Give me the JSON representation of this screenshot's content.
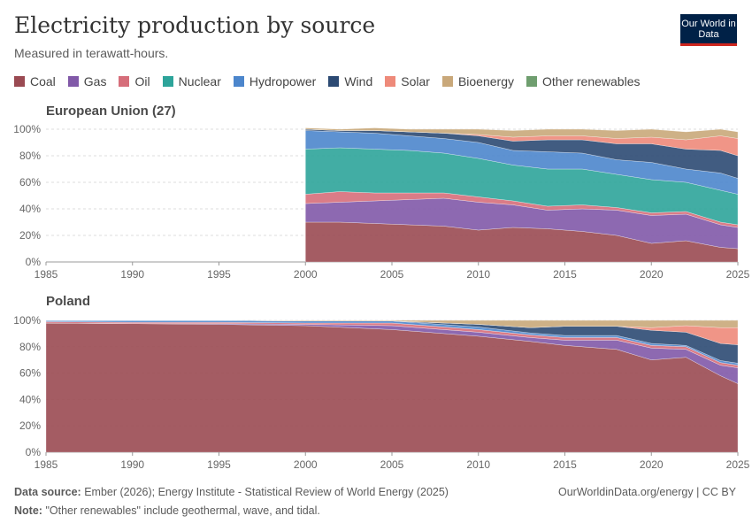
{
  "header": {
    "title": "Electricity production by source",
    "subtitle": "Measured in terawatt-hours.",
    "logo": "Our World in Data"
  },
  "footer": {
    "source_label": "Data source:",
    "source_text": "Ember (2026); Energy Institute - Statistical Review of World Energy (2025)",
    "note_label": "Note:",
    "note_text": "\"Other renewables\" include geothermal, wave, and tidal.",
    "credit": "OurWorldinData.org/energy | CC BY"
  },
  "chart_data": {
    "type": "area",
    "stacked": true,
    "relative": true,
    "legend_position": "top",
    "grid": true,
    "x_ticks": [
      1985,
      1990,
      1995,
      2000,
      2005,
      2010,
      2015,
      2020,
      2025
    ],
    "y_ticks": [
      "0%",
      "20%",
      "40%",
      "60%",
      "80%",
      "100%"
    ],
    "xlim": [
      1985,
      2025
    ],
    "ylim": [
      0,
      100
    ],
    "legend": [
      {
        "name": "Coal",
        "color": "#9a4a52"
      },
      {
        "name": "Gas",
        "color": "#8159a8"
      },
      {
        "name": "Oil",
        "color": "#d66e7a"
      },
      {
        "name": "Nuclear",
        "color": "#2da49a"
      },
      {
        "name": "Hydropower",
        "color": "#4c86cc"
      },
      {
        "name": "Wind",
        "color": "#2c4a73"
      },
      {
        "name": "Solar",
        "color": "#ee8a7a"
      },
      {
        "name": "Bioenergy",
        "color": "#c9a87a"
      },
      {
        "name": "Other renewables",
        "color": "#6f9e6f"
      }
    ],
    "panels": [
      {
        "name": "European Union (27)",
        "x": [
          2000,
          2002,
          2004,
          2006,
          2008,
          2010,
          2012,
          2014,
          2016,
          2018,
          2020,
          2022,
          2024,
          2025
        ],
        "series": [
          {
            "name": "Coal",
            "values": [
              30,
              30,
              29,
              28,
              27,
              24,
              26,
              25,
              23,
              20,
              14,
              16,
              11,
              10
            ]
          },
          {
            "name": "Gas",
            "values": [
              14,
              15,
              17,
              19,
              21,
              21,
              17,
              14,
              17,
              19,
              21,
              20,
              17,
              16
            ]
          },
          {
            "name": "Oil",
            "values": [
              7,
              8,
              6,
              5,
              4,
              4,
              3,
              3,
              3,
              2,
              2,
              2,
              2,
              2
            ]
          },
          {
            "name": "Nuclear",
            "values": [
              34,
              33,
              33,
              32,
              30,
              29,
              27,
              28,
              27,
              25,
              25,
              22,
              24,
              23
            ]
          },
          {
            "name": "Hydropower",
            "values": [
              14,
              12,
              12,
              11,
              11,
              12,
              11,
              13,
              12,
              11,
              13,
              10,
              13,
              12
            ]
          },
          {
            "name": "Wind",
            "values": [
              1,
              1,
              2,
              3,
              4,
              5,
              7,
              9,
              10,
              12,
              14,
              15,
              17,
              17
            ]
          },
          {
            "name": "Solar",
            "values": [
              0,
              0,
              0,
              0,
              0,
              1,
              3,
              3,
              3,
              4,
              5,
              7,
              11,
              13
            ]
          },
          {
            "name": "Bioenergy",
            "values": [
              1,
              1,
              2,
              2,
              3,
              4,
              5,
              5,
              5,
              6,
              6,
              6,
              5,
              5
            ]
          },
          {
            "name": "Other renewables",
            "values": [
              0,
              0,
              0,
              0,
              0,
              0,
              0,
              0,
              0,
              0,
              0,
              0,
              0,
              0
            ]
          }
        ]
      },
      {
        "name": "Poland",
        "x": [
          1985,
          1990,
          1995,
          2000,
          2005,
          2010,
          2013,
          2015,
          2018,
          2020,
          2022,
          2024,
          2025
        ],
        "series": [
          {
            "name": "Coal",
            "values": [
              98,
              97.5,
              97,
              96,
              93,
              88,
              84,
              81,
              78,
              70,
              72,
              58,
              52
            ]
          },
          {
            "name": "Gas",
            "values": [
              0,
              0,
              0.5,
              1,
              3,
              3,
              3,
              4,
              7,
              9,
              6,
              8,
              12
            ]
          },
          {
            "name": "Oil",
            "values": [
              1,
              1,
              1,
              1,
              2,
              2,
              2,
              2,
              2,
              2,
              2,
              2,
              2
            ]
          },
          {
            "name": "Nuclear",
            "values": [
              0,
              0,
              0,
              0,
              0,
              0,
              0,
              0,
              0,
              0,
              0,
              0,
              0
            ]
          },
          {
            "name": "Hydropower",
            "values": [
              1,
              1.5,
              1.5,
              1.5,
              1.5,
              2,
              1.5,
              1.5,
              1.5,
              1.5,
              1,
              1.5,
              1.5
            ]
          },
          {
            "name": "Wind",
            "values": [
              0,
              0,
              0,
              0,
              0,
              2,
              4,
              7,
              7,
              10,
              10,
              13,
              14
            ]
          },
          {
            "name": "Solar",
            "values": [
              0,
              0,
              0,
              0,
              0,
              0,
              0,
              0,
              0,
              2,
              5,
              12,
              13
            ]
          },
          {
            "name": "Bioenergy",
            "values": [
              0,
              0,
              0,
              0.5,
              0.5,
              3,
              5.5,
              4.5,
              4.5,
              5.5,
              4,
              5.5,
              5.5
            ]
          },
          {
            "name": "Other renewables",
            "values": [
              0,
              0,
              0,
              0,
              0,
              0,
              0,
              0,
              0,
              0,
              0,
              0,
              0
            ]
          }
        ]
      }
    ]
  }
}
